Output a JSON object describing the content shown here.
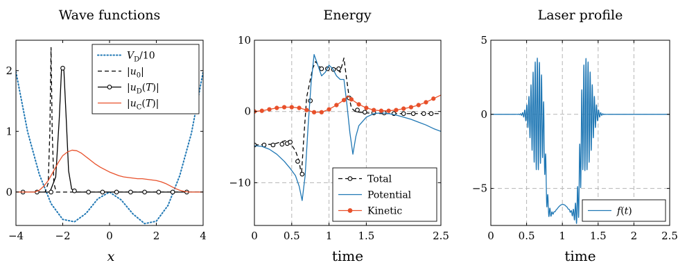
{
  "chart_data": [
    {
      "type": "line",
      "title": "Wave functions",
      "xlabel": "x",
      "ylabel": "",
      "xlim": [
        -4,
        4
      ],
      "ylim": [
        -0.55,
        2.5
      ],
      "xticks": [
        -4,
        -2,
        0,
        2,
        4
      ],
      "xtick_labels": [
        "−4",
        "−2",
        "0",
        "2",
        "4"
      ],
      "yticks": [
        0,
        1,
        2
      ],
      "ytick_labels": [
        "0",
        "1",
        "2"
      ],
      "grid": false,
      "legend_position": "top-right",
      "legend": [
        "V_D/10",
        "|u_0|",
        "|u_D(T)|",
        "|u_C(T)|"
      ],
      "series": [
        {
          "name": "V_D/10",
          "color": "#1f77b4",
          "style": "dotted",
          "x": [
            -4,
            -3.5,
            -3,
            -2.5,
            -2,
            -1.5,
            -1,
            -0.5,
            0,
            0.5,
            1,
            1.5,
            2,
            2.5,
            3,
            3.5,
            4
          ],
          "y": [
            1.98,
            0.99,
            0.29,
            -0.19,
            -0.45,
            -0.49,
            -0.35,
            -0.11,
            0,
            -0.13,
            -0.36,
            -0.52,
            -0.48,
            -0.22,
            0.27,
            0.97,
            1.98
          ]
        },
        {
          "name": "|u_0|",
          "color": "#000000",
          "style": "dashed",
          "x": [
            -4,
            -2.75,
            -2.62,
            -2.55,
            -2.5,
            -2.45,
            -2.38,
            -2.28,
            -2.1,
            4
          ],
          "y": [
            0,
            0,
            0.15,
            1.0,
            2.38,
            1.0,
            0.15,
            0,
            0,
            0
          ]
        },
        {
          "name": "|u_D(T)|",
          "color": "#000000",
          "style": "solid-circle",
          "x": [
            -4,
            -2.55,
            -2.3,
            -2.15,
            -2.05,
            -1.95,
            -1.85,
            -1.75,
            -1.62,
            -1.45,
            4
          ],
          "y": [
            0,
            0,
            0.25,
            1.2,
            2.04,
            2.0,
            1.2,
            0.35,
            0.05,
            0,
            0
          ],
          "markers_x": [
            -3.7,
            -3.1,
            -2.5,
            -2.0,
            -1.5,
            -0.9,
            -0.3,
            0.3,
            0.9,
            1.5,
            2.1,
            2.7,
            3.3
          ],
          "markers_y": [
            0,
            0,
            0,
            2.04,
            0.02,
            0,
            0,
            0,
            0,
            0,
            0,
            0,
            0
          ]
        },
        {
          "name": "|u_C(T)|",
          "color": "#e8502a",
          "style": "solid",
          "x": [
            -4,
            -3.2,
            -3.0,
            -2.8,
            -2.6,
            -2.4,
            -2.2,
            -2.0,
            -1.8,
            -1.6,
            -1.4,
            -1.2,
            -1.0,
            -0.8,
            -0.6,
            -0.4,
            -0.2,
            0,
            0.2,
            0.4,
            0.6,
            0.8,
            1.0,
            1.2,
            1.4,
            1.6,
            1.8,
            2.0,
            2.2,
            2.4,
            2.6,
            2.8,
            3.0,
            3.2,
            3.4,
            3.6,
            4
          ],
          "y": [
            0,
            0,
            0.03,
            0.1,
            0.2,
            0.34,
            0.48,
            0.6,
            0.66,
            0.69,
            0.68,
            0.64,
            0.58,
            0.52,
            0.46,
            0.41,
            0.37,
            0.33,
            0.3,
            0.27,
            0.25,
            0.24,
            0.23,
            0.22,
            0.22,
            0.21,
            0.2,
            0.19,
            0.17,
            0.14,
            0.1,
            0.06,
            0.03,
            0.01,
            0,
            0,
            0
          ]
        }
      ]
    },
    {
      "type": "line",
      "title": "Energy",
      "xlabel": "time",
      "ylabel": "",
      "xlim": [
        0,
        2.5
      ],
      "ylim": [
        -16,
        10
      ],
      "xticks": [
        0,
        0.5,
        1,
        1.5,
        2.5
      ],
      "xtick_labels": [
        "0",
        "0.5",
        "1",
        "1.5",
        "2.5"
      ],
      "yticks": [
        10,
        0,
        -10
      ],
      "ytick_labels": [
        "10",
        "0",
        "−10"
      ],
      "grid": true,
      "legend_position": "bottom-right",
      "legend": [
        "Total",
        "Potential",
        "Kinetic"
      ],
      "series": [
        {
          "name": "Total",
          "color": "#000000",
          "style": "dashed-circle",
          "x": [
            0,
            0.25,
            0.45,
            0.55,
            0.6,
            0.63,
            0.66,
            0.7,
            0.78,
            0.82,
            0.88,
            0.92,
            1.0,
            1.1,
            1.15,
            1.2,
            1.23,
            1.27,
            1.3,
            1.35,
            1.4,
            1.5,
            1.7,
            1.9,
            2.1,
            2.3,
            2.5
          ],
          "y": [
            -4.7,
            -4.6,
            -4.0,
            -5.5,
            -7.0,
            -9.0,
            -4.0,
            2.0,
            6.0,
            7.0,
            6.2,
            6.0,
            6.2,
            6.0,
            5.5,
            7.5,
            5.0,
            2.0,
            0.5,
            0.0,
            -0.1,
            -0.2,
            -0.3,
            -0.3,
            -0.3,
            -0.3,
            -0.3
          ],
          "markers_x": [
            0,
            0.13,
            0.25,
            0.37,
            0.44,
            0.48,
            0.58,
            0.64,
            0.75,
            0.9,
            0.98,
            1.06,
            1.13,
            1.27,
            1.38,
            1.48,
            1.6,
            1.74,
            1.87,
            2.0,
            2.13,
            2.27,
            2.37
          ],
          "markers_y": [
            -4.7,
            -4.7,
            -4.7,
            -4.6,
            -4.5,
            -4.3,
            -7.0,
            -8.8,
            1.5,
            6.0,
            6.0,
            5.9,
            6.0,
            1.9,
            0.2,
            -0.1,
            -0.2,
            -0.2,
            -0.3,
            -0.3,
            -0.3,
            -0.3,
            -0.3
          ]
        },
        {
          "name": "Potential",
          "color": "#1f77b4",
          "style": "solid",
          "x": [
            0,
            0.1,
            0.2,
            0.3,
            0.4,
            0.48,
            0.55,
            0.6,
            0.64,
            0.68,
            0.72,
            0.76,
            0.8,
            0.85,
            0.9,
            0.95,
            1.0,
            1.05,
            1.1,
            1.15,
            1.2,
            1.24,
            1.28,
            1.32,
            1.36,
            1.4,
            1.5,
            1.6,
            1.7,
            1.8,
            1.9,
            2.0,
            2.1,
            2.2,
            2.3,
            2.4,
            2.5
          ],
          "y": [
            -4.8,
            -4.9,
            -5.3,
            -6.0,
            -7.0,
            -8.0,
            -9.0,
            -10.5,
            -12.5,
            -9.0,
            -2.0,
            4.0,
            8.0,
            6.5,
            5.0,
            5.5,
            6.5,
            6.0,
            5.0,
            4.5,
            4.5,
            1.0,
            -3.0,
            -6.0,
            -3.5,
            -2.0,
            -0.8,
            -0.3,
            -0.2,
            -0.3,
            -0.5,
            -0.8,
            -1.1,
            -1.5,
            -1.9,
            -2.4,
            -2.8
          ]
        },
        {
          "name": "Kinetic",
          "color": "#e8502a",
          "style": "solid-dot",
          "x": [
            0,
            0.1,
            0.2,
            0.3,
            0.4,
            0.5,
            0.6,
            0.7,
            0.8,
            0.9,
            1.0,
            1.1,
            1.2,
            1.25,
            1.3,
            1.4,
            1.5,
            1.6,
            1.7,
            1.8,
            1.9,
            2.0,
            2.1,
            2.2,
            2.3,
            2.4,
            2.5
          ],
          "y": [
            0.0,
            0.1,
            0.3,
            0.5,
            0.6,
            0.6,
            0.5,
            0.2,
            -0.1,
            -0.1,
            0.3,
            0.9,
            1.6,
            2.2,
            1.7,
            1.0,
            0.5,
            0.2,
            0.1,
            0.1,
            0.2,
            0.4,
            0.6,
            0.9,
            1.3,
            1.8,
            2.3
          ],
          "markers_x": [
            0,
            0.1,
            0.2,
            0.3,
            0.4,
            0.5,
            0.6,
            0.7,
            0.8,
            0.9,
            1.0,
            1.1,
            1.2,
            1.3,
            1.4,
            1.5,
            1.6,
            1.7,
            1.8,
            1.9,
            2.0,
            2.1,
            2.2,
            2.3,
            2.4
          ],
          "markers_y": [
            0.0,
            0.1,
            0.3,
            0.5,
            0.6,
            0.6,
            0.5,
            0.2,
            -0.1,
            -0.1,
            0.3,
            0.9,
            1.6,
            1.7,
            1.0,
            0.5,
            0.2,
            0.1,
            0.1,
            0.2,
            0.4,
            0.6,
            0.9,
            1.3,
            1.8
          ]
        }
      ]
    },
    {
      "type": "line",
      "title": "Laser profile",
      "xlabel": "time",
      "ylabel": "",
      "xlim": [
        0,
        2.5
      ],
      "ylim": [
        -7.5,
        5
      ],
      "xticks": [
        0,
        0.5,
        1,
        1.5,
        2,
        2.5
      ],
      "xtick_labels": [
        "0",
        "0.5",
        "1",
        "1.5",
        "2",
        "2.5"
      ],
      "yticks": [
        5,
        0,
        -5
      ],
      "ytick_labels": [
        "5",
        "0",
        "−5"
      ],
      "grid": true,
      "legend_position": "bottom-right",
      "legend": [
        "f(t)"
      ],
      "series": [
        {
          "name": "f(t)",
          "color": "#1f77b4",
          "style": "solid",
          "envelope": {
            "pulses": [
              {
                "center": 0.65,
                "width": 0.11,
                "amplitude": 3.8,
                "frequency": 34
              },
              {
                "center": 1.33,
                "width": 0.11,
                "amplitude": 3.8,
                "frequency": 34
              }
            ],
            "plateau": {
              "start": 0.76,
              "end": 1.25,
              "level": -6.4
            }
          }
        }
      ]
    }
  ]
}
